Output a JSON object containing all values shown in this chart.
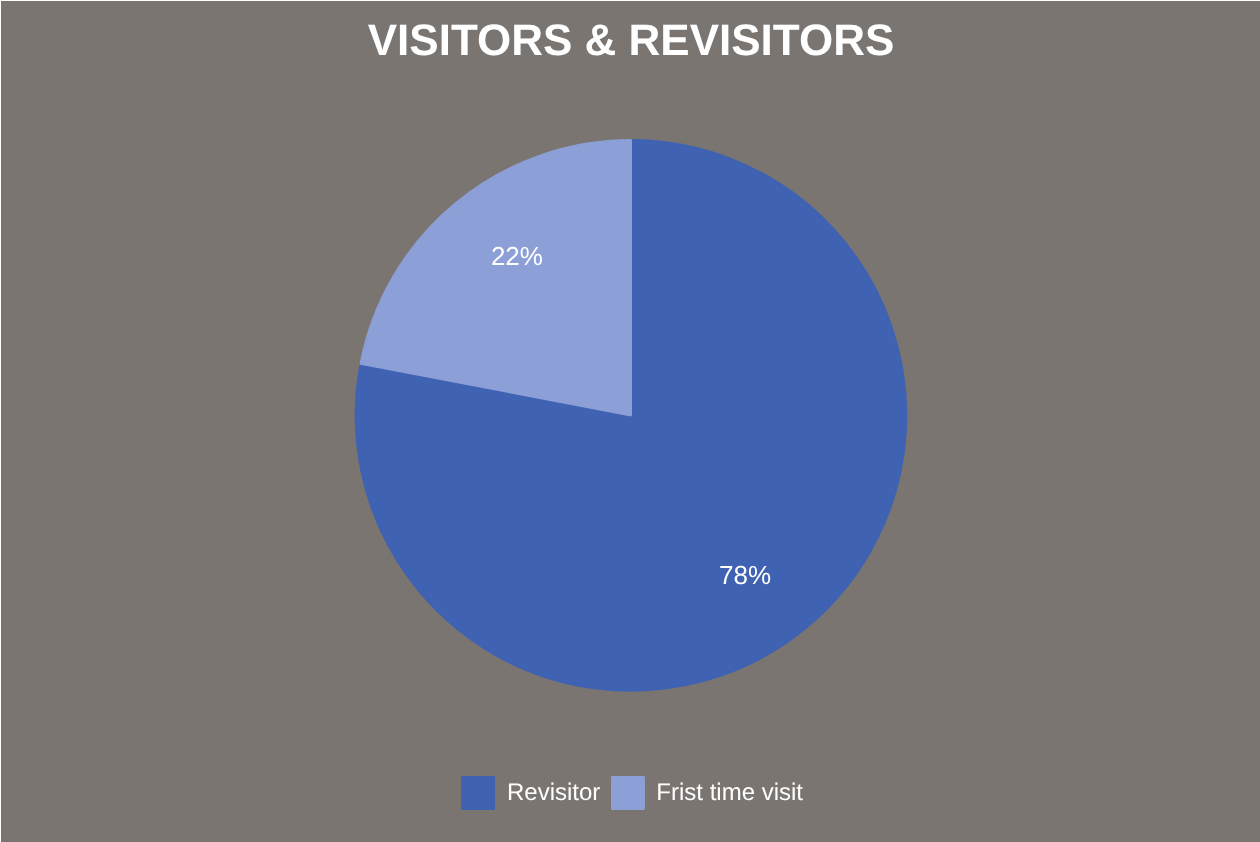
{
  "chart_data": {
    "type": "pie",
    "title": "VISITORS & REVISITORS",
    "categories": [
      "Revisitor",
      "Frist time visit"
    ],
    "values": [
      78,
      22
    ],
    "colors": [
      "#3f62b2",
      "#8c9fd6"
    ],
    "value_labels": [
      "78%",
      "22%"
    ],
    "legend": "bottom"
  }
}
